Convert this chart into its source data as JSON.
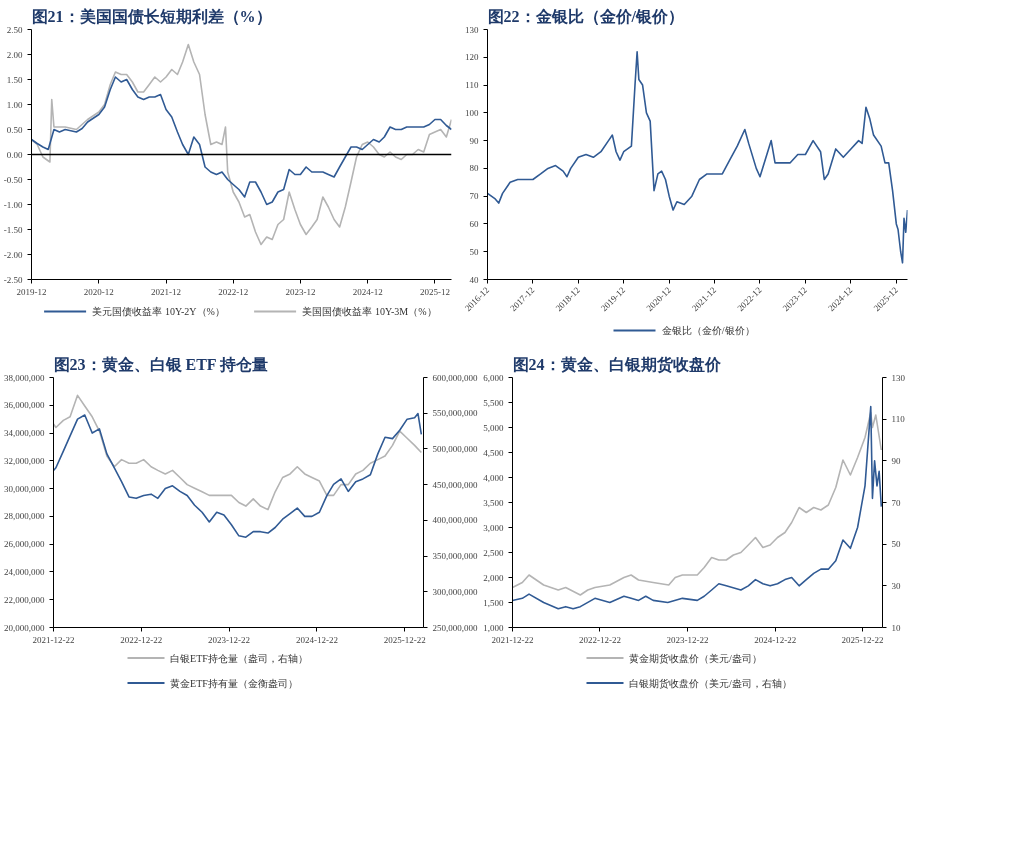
{
  "chart_data": [
    {
      "type": "line",
      "title": "图21：美国国债长短期利差（%）",
      "legend": "bottom",
      "grid": false,
      "xlim": [
        "2019-12",
        "2026-03"
      ],
      "xticks": [
        "2019-12",
        "2020-12",
        "2021-12",
        "2022-12",
        "2023-12",
        "2024-12",
        "2025-12"
      ],
      "ylim": [
        -2.5,
        2.5
      ],
      "yticks": [
        {
          "value": -2.5,
          "label": "-2.50"
        },
        {
          "value": -2.0,
          "label": "-2.00"
        },
        {
          "value": -1.5,
          "label": "-1.50"
        },
        {
          "value": -1.0,
          "label": "-1.00"
        },
        {
          "value": -0.5,
          "label": "-0.50"
        },
        {
          "value": 0,
          "label": "0.00"
        },
        {
          "value": 0.5,
          "label": "0.50"
        },
        {
          "value": 1.0,
          "label": "1.00"
        },
        {
          "value": 1.5,
          "label": "1.50"
        },
        {
          "value": 2.0,
          "label": "2.00"
        },
        {
          "value": 2.5,
          "label": "2.50"
        }
      ],
      "ref_lines": [
        {
          "axis": "y",
          "value": 0,
          "color": "#000000"
        }
      ],
      "series": [
        {
          "name": "美国国债收益率 10Y-3M（%）",
          "color": "#b4b4b4",
          "x": [
            "2019-12",
            "2020-01",
            "2020-02",
            "2020-03-10",
            "2020-03-20",
            "2020-04",
            "2020-05",
            "2020-06",
            "2020-08",
            "2020-10",
            "2020-12",
            "2021-01",
            "2021-02",
            "2021-03",
            "2021-04",
            "2021-05",
            "2021-06",
            "2021-07",
            "2021-08",
            "2021-09",
            "2021-10",
            "2021-11",
            "2021-12",
            "2022-01",
            "2022-02",
            "2022-03",
            "2022-04",
            "2022-05",
            "2022-06",
            "2022-07",
            "2022-08",
            "2022-09",
            "2022-10",
            "2022-10-20",
            "2022-11",
            "2022-12",
            "2023-01",
            "2023-02",
            "2023-03",
            "2023-04",
            "2023-05",
            "2023-06",
            "2023-07",
            "2023-08",
            "2023-09",
            "2023-10",
            "2023-11",
            "2023-12",
            "2024-01",
            "2024-02",
            "2024-03",
            "2024-04",
            "2024-05",
            "2024-06",
            "2024-07",
            "2024-08",
            "2024-09",
            "2024-10",
            "2024-11",
            "2024-12",
            "2025-01",
            "2025-02",
            "2025-03",
            "2025-04",
            "2025-05",
            "2025-06",
            "2025-07",
            "2025-08",
            "2025-09",
            "2025-10",
            "2025-11",
            "2025-12",
            "2026-01",
            "2026-02",
            "2026-03"
          ],
          "values": [
            0.3,
            0.2,
            -0.05,
            -0.15,
            1.1,
            0.55,
            0.55,
            0.55,
            0.5,
            0.7,
            0.85,
            1.0,
            1.4,
            1.65,
            1.6,
            1.6,
            1.45,
            1.25,
            1.25,
            1.4,
            1.55,
            1.45,
            1.55,
            1.7,
            1.6,
            1.85,
            2.2,
            1.85,
            1.6,
            0.8,
            0.2,
            0.25,
            0.2,
            0.55,
            -0.35,
            -0.75,
            -0.95,
            -1.25,
            -1.2,
            -1.55,
            -1.8,
            -1.65,
            -1.7,
            -1.4,
            -1.3,
            -0.75,
            -1.1,
            -1.4,
            -1.6,
            -1.45,
            -1.3,
            -0.85,
            -1.05,
            -1.3,
            -1.45,
            -1.05,
            -0.55,
            -0.05,
            0.2,
            0.25,
            0.15,
            0.0,
            -0.05,
            0.05,
            -0.05,
            -0.1,
            0.0,
            0.0,
            0.1,
            0.05,
            0.4,
            0.45,
            0.5,
            0.35,
            0.7
          ]
        },
        {
          "name": "美元国债收益率 10Y-2Y（%）",
          "color": "#305a94",
          "x": [
            "2019-12",
            "2020-01",
            "2020-02",
            "2020-03",
            "2020-04",
            "2020-05",
            "2020-06",
            "2020-08",
            "2020-09",
            "2020-10",
            "2020-12",
            "2021-01",
            "2021-02",
            "2021-03",
            "2021-04",
            "2021-05",
            "2021-06",
            "2021-07",
            "2021-08",
            "2021-09",
            "2021-10",
            "2021-11",
            "2021-12",
            "2022-01",
            "2022-02",
            "2022-03",
            "2022-04",
            "2022-05",
            "2022-06",
            "2022-07",
            "2022-08",
            "2022-09",
            "2022-10",
            "2022-11",
            "2022-12",
            "2023-01",
            "2023-02",
            "2023-03",
            "2023-04",
            "2023-05",
            "2023-06",
            "2023-07",
            "2023-08",
            "2023-09",
            "2023-10",
            "2023-11",
            "2023-12",
            "2024-01",
            "2024-02",
            "2024-03",
            "2024-04",
            "2024-05",
            "2024-06",
            "2024-07",
            "2024-08",
            "2024-09",
            "2024-10",
            "2024-11",
            "2024-12",
            "2025-01",
            "2025-02",
            "2025-03",
            "2025-04",
            "2025-05",
            "2025-06",
            "2025-07",
            "2025-08",
            "2025-09",
            "2025-10",
            "2025-11",
            "2025-12",
            "2026-01",
            "2026-02",
            "2026-03"
          ],
          "values": [
            0.3,
            0.22,
            0.15,
            0.1,
            0.5,
            0.45,
            0.5,
            0.45,
            0.52,
            0.65,
            0.8,
            0.95,
            1.3,
            1.55,
            1.45,
            1.5,
            1.3,
            1.15,
            1.1,
            1.15,
            1.15,
            1.2,
            0.9,
            0.75,
            0.45,
            0.2,
            0.0,
            0.35,
            0.2,
            -0.25,
            -0.35,
            -0.4,
            -0.35,
            -0.5,
            -0.6,
            -0.7,
            -0.85,
            -0.55,
            -0.55,
            -0.75,
            -1.0,
            -0.95,
            -0.75,
            -0.7,
            -0.3,
            -0.4,
            -0.4,
            -0.25,
            -0.35,
            -0.35,
            -0.35,
            -0.4,
            -0.45,
            -0.25,
            -0.05,
            0.15,
            0.15,
            0.1,
            0.2,
            0.3,
            0.25,
            0.35,
            0.55,
            0.5,
            0.5,
            0.55,
            0.55,
            0.55,
            0.55,
            0.6,
            0.7,
            0.7,
            0.58,
            0.5
          ]
        }
      ]
    },
    {
      "type": "line",
      "title": "图22：金银比（金价/银价）",
      "legend": "bottom",
      "grid": false,
      "xlim": [
        "2016-12",
        "2026-03"
      ],
      "xticks": [
        "2016-12",
        "2017-12",
        "2018-12",
        "2019-12",
        "2020-12",
        "2021-12",
        "2022-12",
        "2023-12",
        "2024-12",
        "2025-12"
      ],
      "ylim": [
        40,
        130
      ],
      "yticks": [
        40,
        50,
        60,
        70,
        80,
        90,
        100,
        110,
        120,
        130
      ],
      "series": [
        {
          "name": "金银比（金价/银价）",
          "color": "#305a94",
          "x": [
            "2016-12",
            "2017-02",
            "2017-03",
            "2017-04",
            "2017-06",
            "2017-08",
            "2017-10",
            "2017-12",
            "2018-02",
            "2018-04",
            "2018-06",
            "2018-08",
            "2018-09",
            "2018-10",
            "2018-12",
            "2019-02",
            "2019-04",
            "2019-06",
            "2019-08",
            "2019-09",
            "2019-10",
            "2019-11",
            "2019-12",
            "2020-02",
            "2020-03-01",
            "2020-03-18",
            "2020-04",
            "2020-05",
            "2020-06",
            "2020-07",
            "2020-08",
            "2020-09",
            "2020-10",
            "2020-11",
            "2020-12",
            "2021-01",
            "2021-02",
            "2021-04",
            "2021-06",
            "2021-08",
            "2021-10",
            "2021-12",
            "2022-02",
            "2022-04",
            "2022-06",
            "2022-08",
            "2022-09",
            "2022-11",
            "2022-12",
            "2023-02",
            "2023-03",
            "2023-04",
            "2023-06",
            "2023-08",
            "2023-10",
            "2023-12",
            "2024-02",
            "2024-04",
            "2024-05",
            "2024-06",
            "2024-08",
            "2024-10",
            "2024-12",
            "2025-02",
            "2025-03",
            "2025-04",
            "2025-05",
            "2025-06",
            "2025-08",
            "2025-09",
            "2025-10",
            "2025-11",
            "2025-12-01",
            "2025-12-15",
            "2026-01-05",
            "2026-01-20",
            "2026-02-01",
            "2026-02-15",
            "2026-03-01"
          ],
          "values": [
            71,
            69,
            67.5,
            71,
            75,
            76,
            76,
            76,
            78,
            80,
            81,
            79,
            77,
            80,
            84,
            85,
            84,
            86,
            90,
            92,
            86,
            83,
            86,
            88,
            110,
            122,
            112,
            110,
            100,
            97,
            72,
            78,
            79,
            76,
            70,
            65,
            68,
            67,
            70,
            76,
            78,
            78,
            78,
            83,
            88,
            94,
            89,
            80,
            77,
            86,
            90,
            82,
            82,
            82,
            85,
            85,
            90,
            86,
            76,
            78,
            87,
            84,
            87,
            90,
            89,
            102,
            98,
            92,
            88,
            82,
            82,
            72,
            60,
            58,
            50,
            46,
            62,
            57,
            65
          ]
        }
      ]
    },
    {
      "type": "line",
      "title": "图23：黄金、白银 ETF 持仓量",
      "legend": "bottom",
      "grid": false,
      "xlim": [
        "2021-12-22",
        "2026-03-10"
      ],
      "xticks": [
        "2021-12-22",
        "2022-12-22",
        "2023-12-22",
        "2024-12-22",
        "2025-12-22"
      ],
      "ylim": [
        20000000,
        38000000
      ],
      "yticks": [
        {
          "value": 20000000,
          "label": "20,000,000"
        },
        {
          "value": 22000000,
          "label": "22,000,000"
        },
        {
          "value": 24000000,
          "label": "24,000,000"
        },
        {
          "value": 26000000,
          "label": "26,000,000"
        },
        {
          "value": 28000000,
          "label": "28,000,000"
        },
        {
          "value": 30000000,
          "label": "30,000,000"
        },
        {
          "value": 32000000,
          "label": "32,000,000"
        },
        {
          "value": 34000000,
          "label": "34,000,000"
        },
        {
          "value": 36000000,
          "label": "36,000,000"
        },
        {
          "value": 38000000,
          "label": "38,000,000"
        }
      ],
      "y2lim": [
        250000000,
        600000000
      ],
      "y2ticks": [
        {
          "value": 250000000,
          "label": "250,000,000"
        },
        {
          "value": 300000000,
          "label": "300,000,000"
        },
        {
          "value": 350000000,
          "label": "350,000,000"
        },
        {
          "value": 400000000,
          "label": "400,000,000"
        },
        {
          "value": 450000000,
          "label": "450,000,000"
        },
        {
          "value": 500000000,
          "label": "500,000,000"
        },
        {
          "value": 550000000,
          "label": "550,000,000"
        },
        {
          "value": 600000000,
          "label": "600,000,000"
        }
      ],
      "series": [
        {
          "name": "白银ETF持仓量（盎司，右轴）",
          "color": "#b4b4b4",
          "axis": "y2",
          "x": [
            "2021-12-22",
            "2022-01",
            "2022-02",
            "2022-03",
            "2022-04",
            "2022-05",
            "2022-06",
            "2022-07",
            "2022-08",
            "2022-09",
            "2022-10",
            "2022-11",
            "2022-12",
            "2023-01",
            "2023-02",
            "2023-03",
            "2023-04",
            "2023-05",
            "2023-06",
            "2023-07",
            "2023-08",
            "2023-09",
            "2023-10",
            "2023-11",
            "2023-12",
            "2024-01",
            "2024-02",
            "2024-03",
            "2024-04",
            "2024-05",
            "2024-06",
            "2024-07",
            "2024-08",
            "2024-09",
            "2024-10",
            "2024-11",
            "2024-12",
            "2025-01",
            "2025-02",
            "2025-03",
            "2025-04",
            "2025-05",
            "2025-06",
            "2025-07",
            "2025-08",
            "2025-09",
            "2025-10",
            "2025-11",
            "2025-12",
            "2026-01",
            "2026-02",
            "2026-03"
          ],
          "values": [
            535000000,
            530000000,
            540000000,
            545000000,
            575000000,
            560000000,
            545000000,
            525000000,
            490000000,
            475000000,
            485000000,
            480000000,
            480000000,
            485000000,
            475000000,
            470000000,
            465000000,
            470000000,
            460000000,
            450000000,
            445000000,
            440000000,
            435000000,
            435000000,
            435000000,
            435000000,
            425000000,
            420000000,
            430000000,
            420000000,
            415000000,
            440000000,
            460000000,
            465000000,
            475000000,
            465000000,
            460000000,
            455000000,
            435000000,
            435000000,
            450000000,
            450000000,
            465000000,
            470000000,
            480000000,
            485000000,
            490000000,
            505000000,
            525000000,
            515000000,
            505000000,
            495000000
          ]
        },
        {
          "name": "黄金ETF持有量（金衡盎司）",
          "color": "#305a94",
          "x": [
            "2021-12-22",
            "2022-01",
            "2022-02",
            "2022-03",
            "2022-04",
            "2022-05",
            "2022-06",
            "2022-07",
            "2022-08",
            "2022-09",
            "2022-10",
            "2022-11",
            "2022-12",
            "2023-01",
            "2023-02",
            "2023-03",
            "2023-04",
            "2023-05",
            "2023-06",
            "2023-07",
            "2023-08",
            "2023-09",
            "2023-10",
            "2023-11",
            "2023-12",
            "2024-01",
            "2024-02",
            "2024-03",
            "2024-04",
            "2024-05",
            "2024-06",
            "2024-07",
            "2024-08",
            "2024-09",
            "2024-10",
            "2024-11",
            "2024-12",
            "2025-01",
            "2025-02",
            "2025-03",
            "2025-04",
            "2025-05",
            "2025-06",
            "2025-07",
            "2025-08",
            "2025-09",
            "2025-10",
            "2025-11",
            "2025-12",
            "2026-01",
            "2026-02",
            "2026-02-15",
            "2026-03"
          ],
          "values": [
            31300000,
            31500000,
            32700000,
            33800000,
            35000000,
            35300000,
            34000000,
            34300000,
            32500000,
            31500000,
            30500000,
            29400000,
            29300000,
            29500000,
            29600000,
            29300000,
            30000000,
            30200000,
            29800000,
            29500000,
            28800000,
            28300000,
            27600000,
            28300000,
            28100000,
            27400000,
            26600000,
            26500000,
            26900000,
            26900000,
            26800000,
            27200000,
            27800000,
            28200000,
            28600000,
            28000000,
            28000000,
            28300000,
            29500000,
            30300000,
            30700000,
            29800000,
            30500000,
            30700000,
            31000000,
            32500000,
            33700000,
            33600000,
            34200000,
            35000000,
            35100000,
            35400000,
            33900000
          ]
        }
      ]
    },
    {
      "type": "line",
      "title": "图24：黄金、白银期货收盘价",
      "legend": "bottom",
      "grid": false,
      "xlim": [
        "2021-12-22",
        "2026-03-15"
      ],
      "xticks": [
        "2021-12-22",
        "2022-12-22",
        "2023-12-22",
        "2024-12-22",
        "2025-12-22"
      ],
      "ylim": [
        1000,
        6000
      ],
      "yticks": [
        {
          "value": 1000,
          "label": "1,000"
        },
        {
          "value": 1500,
          "label": "1,500"
        },
        {
          "value": 2000,
          "label": "2,000"
        },
        {
          "value": 2500,
          "label": "2,500"
        },
        {
          "value": 3000,
          "label": "3,000"
        },
        {
          "value": 3500,
          "label": "3,500"
        },
        {
          "value": 4000,
          "label": "4,000"
        },
        {
          "value": 4500,
          "label": "4,500"
        },
        {
          "value": 5000,
          "label": "5,000"
        },
        {
          "value": 5500,
          "label": "5,500"
        },
        {
          "value": 6000,
          "label": "6,000"
        }
      ],
      "y2lim": [
        10,
        130
      ],
      "y2ticks": [
        10,
        30,
        50,
        70,
        90,
        110,
        130
      ],
      "series": [
        {
          "name": "黄金期货收盘价（美元/盎司）",
          "color": "#b4b4b4",
          "x": [
            "2021-12-22",
            "2022-02",
            "2022-03",
            "2022-05",
            "2022-07",
            "2022-08",
            "2022-10",
            "2022-11",
            "2022-12",
            "2023-02",
            "2023-04",
            "2023-05",
            "2023-06",
            "2023-08",
            "2023-10-05",
            "2023-11",
            "2023-12",
            "2024-02",
            "2024-03",
            "2024-04",
            "2024-05",
            "2024-06",
            "2024-07",
            "2024-08",
            "2024-09",
            "2024-10",
            "2024-11",
            "2024-12",
            "2025-01",
            "2025-02",
            "2025-03",
            "2025-04",
            "2025-05",
            "2025-06",
            "2025-07",
            "2025-08",
            "2025-09",
            "2025-10",
            "2025-11",
            "2025-12",
            "2026-01",
            "2026-01-25",
            "2026-02",
            "2026-02-15",
            "2026-03-10"
          ],
          "values": [
            1800,
            1900,
            2050,
            1850,
            1750,
            1800,
            1650,
            1750,
            1800,
            1850,
            2000,
            2050,
            1950,
            1900,
            1850,
            2000,
            2050,
            2050,
            2200,
            2400,
            2350,
            2350,
            2450,
            2500,
            2650,
            2800,
            2600,
            2650,
            2800,
            2900,
            3100,
            3400,
            3300,
            3400,
            3350,
            3450,
            3800,
            4350,
            4050,
            4400,
            4800,
            5300,
            5000,
            5250,
            4550
          ]
        },
        {
          "name": "白银期货收盘价（美元/盎司，右轴）",
          "color": "#305a94",
          "axis": "y2",
          "x": [
            "2021-12-22",
            "2022-02",
            "2022-03",
            "2022-05",
            "2022-07",
            "2022-08",
            "2022-09",
            "2022-10",
            "2022-12",
            "2023-02",
            "2023-04",
            "2023-05",
            "2023-06",
            "2023-07",
            "2023-08",
            "2023-10",
            "2023-12",
            "2024-02",
            "2024-03",
            "2024-04",
            "2024-05",
            "2024-06",
            "2024-08",
            "2024-09",
            "2024-10",
            "2024-11",
            "2024-12",
            "2025-01",
            "2025-02",
            "2025-03",
            "2025-04",
            "2025-05",
            "2025-06",
            "2025-07",
            "2025-08",
            "2025-09",
            "2025-10",
            "2025-11",
            "2025-12",
            "2026-01",
            "2026-01-25",
            "2026-02-01",
            "2026-02-10",
            "2026-02-20",
            "2026-03-01",
            "2026-03-10"
          ],
          "values": [
            23,
            24,
            26,
            22,
            19,
            20,
            19,
            20,
            24,
            22,
            25,
            24,
            23,
            25,
            23,
            22,
            24,
            23,
            25,
            28,
            31,
            30,
            28,
            30,
            33,
            31,
            30,
            31,
            33,
            34,
            30,
            33,
            36,
            38,
            38,
            42,
            52,
            48,
            58,
            78,
            116,
            72,
            90,
            78,
            85,
            68
          ]
        }
      ]
    }
  ]
}
